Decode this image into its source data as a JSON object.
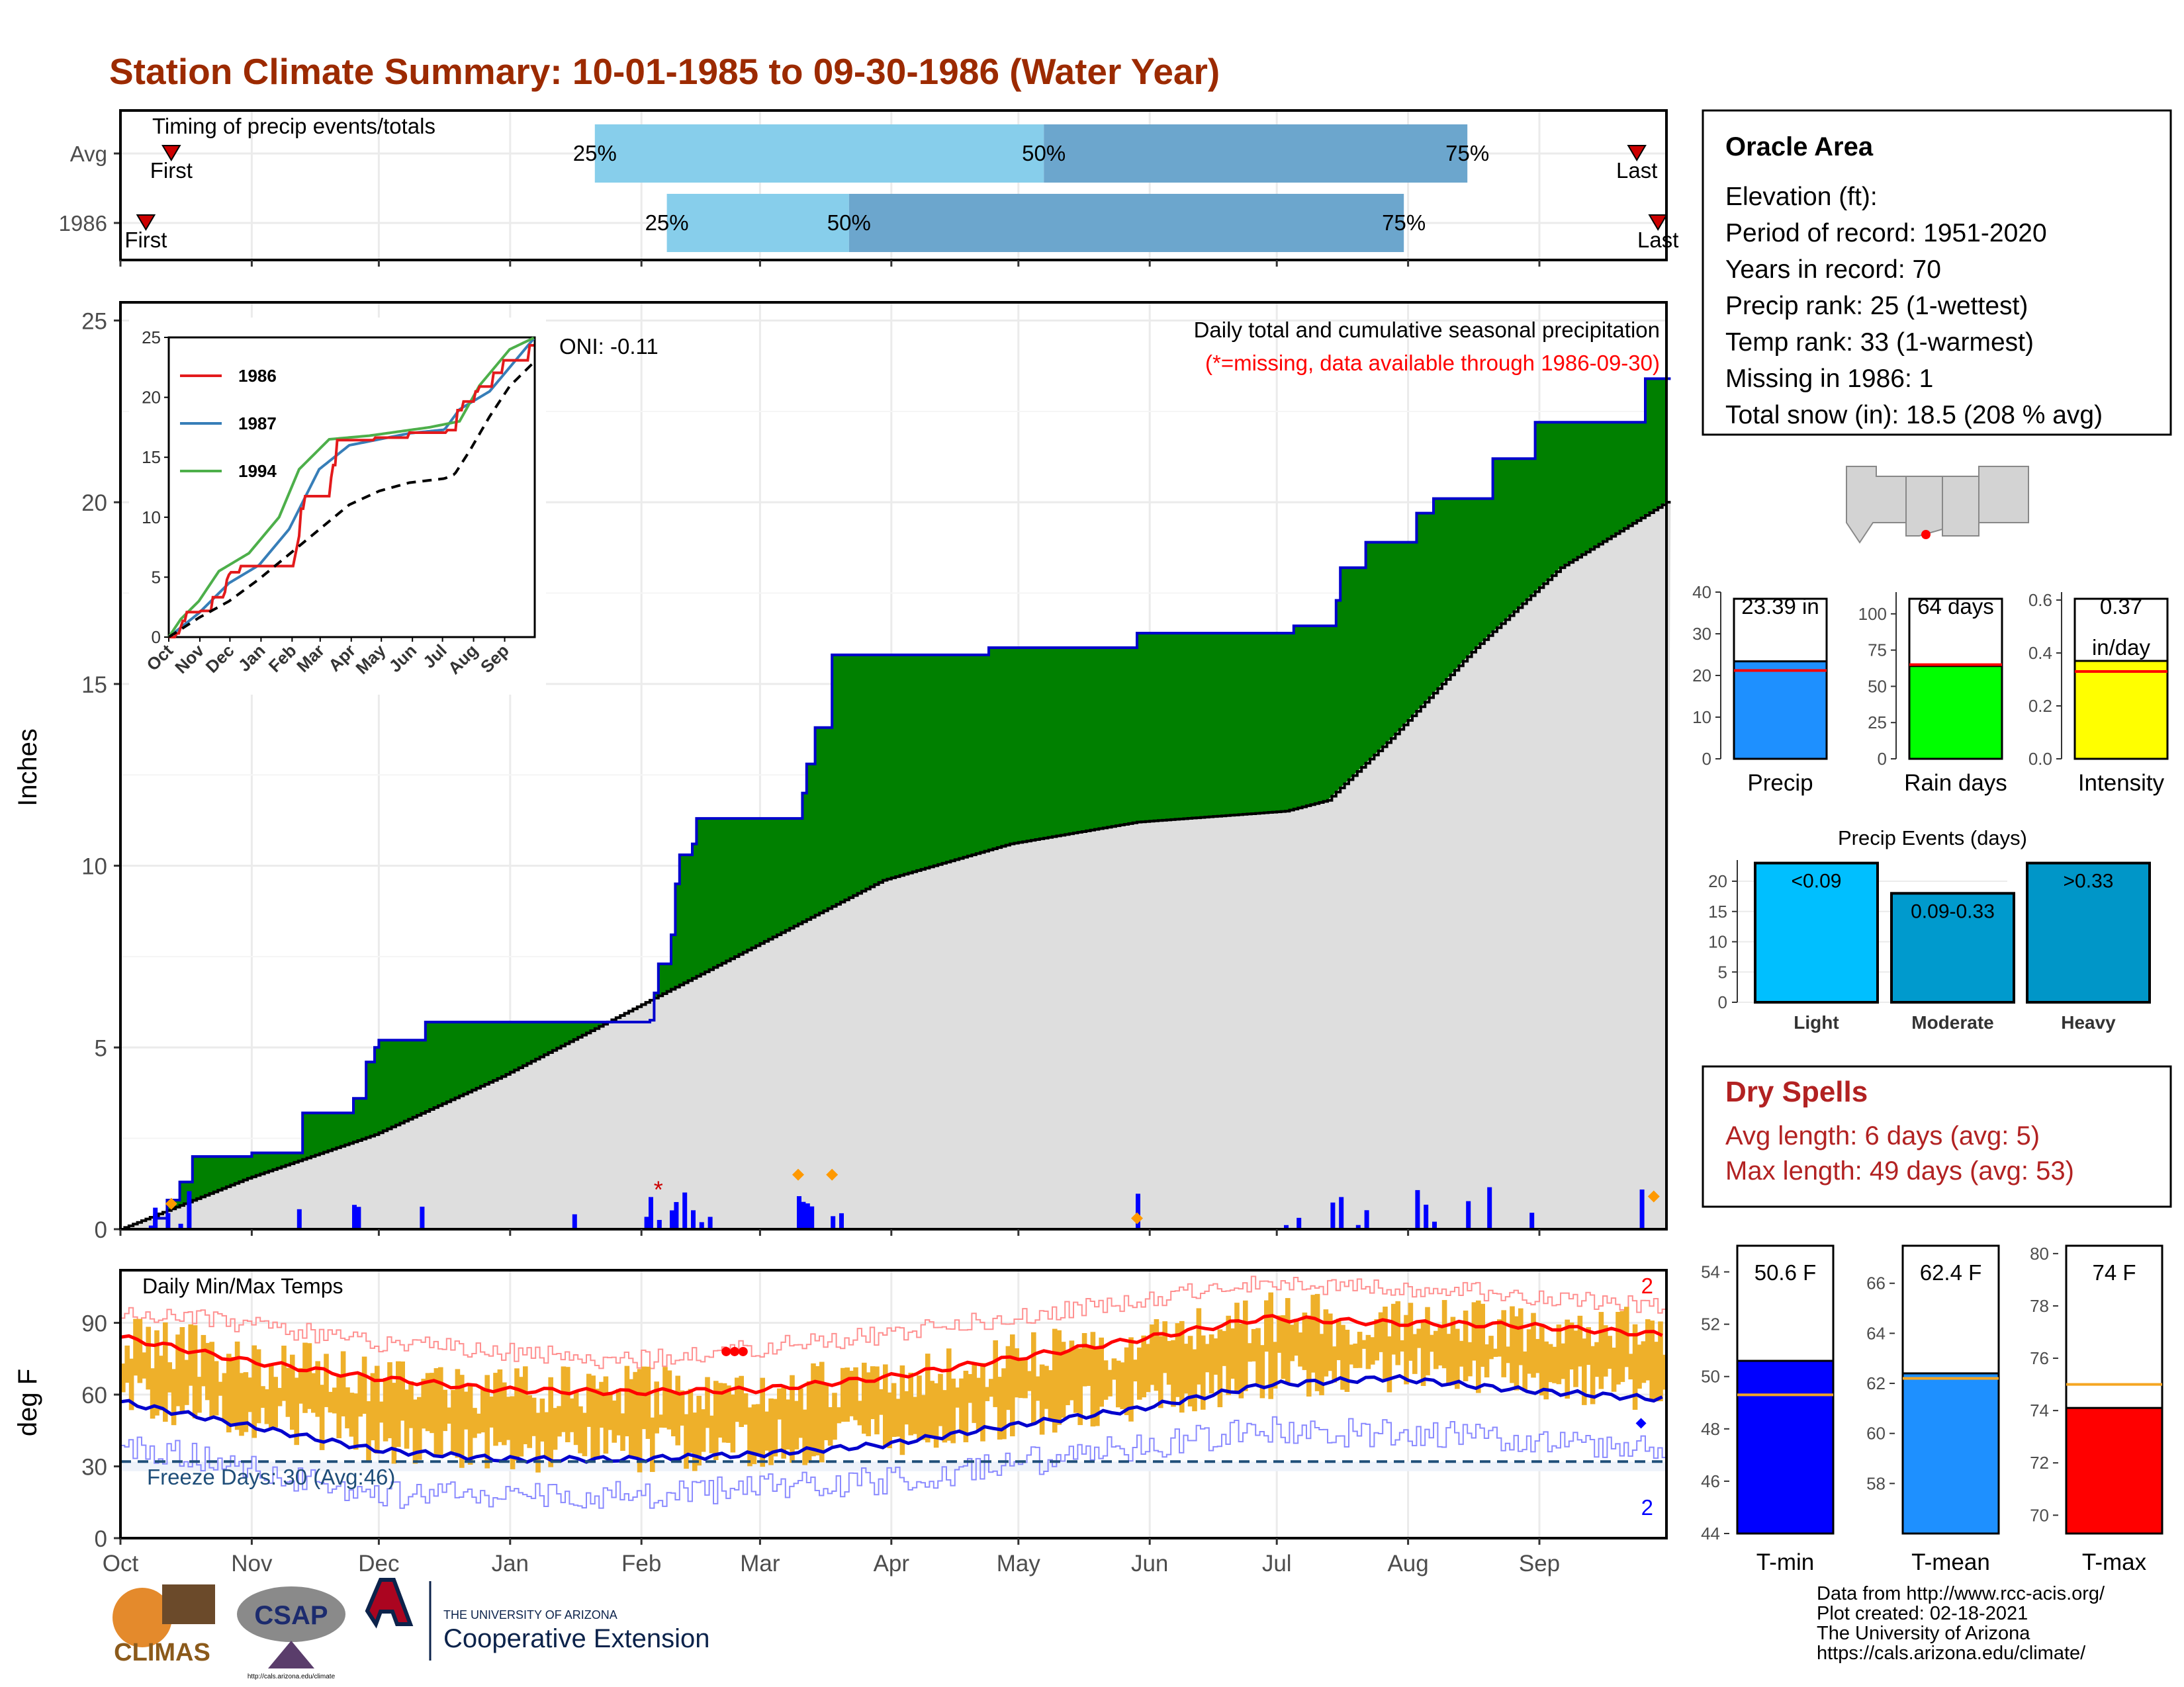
{
  "title": "Station Climate Summary: 10-01-1985 to 09-30-1986 (Water Year)",
  "timing": {
    "title": "Timing of precip events/totals",
    "rows": [
      {
        "label": "Avg",
        "first_label": "First",
        "last_label": "Last",
        "p25_label": "25%",
        "p50_label": "50%",
        "p75_label": "75%",
        "first_day": 12,
        "p25_day": 112,
        "p50_day": 218,
        "p75_day": 318,
        "last_day": 358
      },
      {
        "label": "1986",
        "first_label": "First",
        "last_label": "Last",
        "p25_label": "25%",
        "p50_label": "50%",
        "p75_label": "75%",
        "first_day": 6,
        "p25_day": 129,
        "p50_day": 172,
        "p75_day": 303,
        "last_day": 363
      }
    ]
  },
  "precip_panel": {
    "ylabel": "Inches",
    "title_line1": "Daily total and cumulative seasonal precipitation",
    "title_line2": "(*=missing, data available through 1986-09-30)",
    "oni": "ONI: -0.11"
  },
  "inset": {
    "legend": [
      "1986",
      "1987",
      "1994"
    ],
    "colors": [
      "#e31a1c",
      "#377eb8",
      "#4daf4a"
    ],
    "months": [
      "Oct",
      "Nov",
      "Dec",
      "Jan",
      "Feb",
      "Mar",
      "Apr",
      "May",
      "Jun",
      "Jul",
      "Aug",
      "Sep"
    ],
    "yticks": [
      "0",
      "5",
      "10",
      "15",
      "20",
      "25"
    ]
  },
  "temp_panel": {
    "ylabel": "deg F",
    "title": "Daily Min/Max Temps",
    "freeze_label": "Freeze Days: 30 (Avg:46)",
    "record_high_count": "2",
    "record_low_count": "2"
  },
  "x_months": [
    "Oct",
    "Nov",
    "Dec",
    "Jan",
    "Feb",
    "Mar",
    "Apr",
    "May",
    "Jun",
    "Jul",
    "Aug",
    "Sep"
  ],
  "info": {
    "station": "Oracle Area",
    "lines": [
      "Elevation (ft):",
      "Period of record: 1951-2020",
      "Years in record: 70",
      "Precip rank: 25 (1-wettest)",
      "Temp rank: 33 (1-warmest)",
      "Missing in 1986: 1",
      "Total snow (in): 18.5 (208 % avg)"
    ]
  },
  "stat_bars": [
    {
      "label": "Precip",
      "value_label": "23.39 in",
      "value": 23.39,
      "avg": 21.2,
      "ymax": 40,
      "ticks": [
        "0",
        "10",
        "20",
        "30",
        "40"
      ],
      "color": "#1e90ff"
    },
    {
      "label": "Rain days",
      "value_label": "64 days",
      "value": 64,
      "avg": 65,
      "ymax": 115,
      "ticks": [
        "0",
        "25",
        "50",
        "75",
        "100"
      ],
      "color": "#00ff00"
    },
    {
      "label": "Intensity",
      "value_label": "0.37",
      "value_label2": "in/day",
      "value": 0.37,
      "avg": 0.33,
      "ymax": 0.63,
      "ticks": [
        "0.0",
        "0.2",
        "0.4",
        "0.6"
      ],
      "color": "#ffff00"
    }
  ],
  "events": {
    "title": "Precip Events (days)",
    "categories": [
      "Light",
      "Moderate",
      "Heavy"
    ],
    "bar_labels": [
      "<0.09",
      "0.09-0.33",
      ">0.33"
    ],
    "values": [
      23,
      18,
      23
    ],
    "ticks": [
      "0",
      "5",
      "10",
      "15",
      "20"
    ],
    "colors": [
      "#00bfff",
      "#009acd",
      "#0096c8"
    ]
  },
  "dry_spells": {
    "title": "Dry Spells",
    "line1": "Avg length: 6 days (avg: 5)",
    "line2": "Max length: 49 days (avg: 53)"
  },
  "temp_bars": [
    {
      "label": "T-min",
      "value_label": "50.6 F",
      "value": 50.6,
      "avg": 49.3,
      "ymin": 44,
      "ymax": 55,
      "ticks": [
        "44",
        "46",
        "48",
        "50",
        "52",
        "54"
      ],
      "color": "#0000ff"
    },
    {
      "label": "T-mean",
      "value_label": "62.4 F",
      "value": 62.4,
      "avg": 62.2,
      "ymin": 56,
      "ymax": 67.5,
      "ticks": [
        "58",
        "60",
        "62",
        "64",
        "66"
      ],
      "color": "#1e90ff"
    },
    {
      "label": "T-max",
      "value_label": "74 F",
      "value": 74.1,
      "avg": 75,
      "ymin": 69.3,
      "ymax": 80.3,
      "ticks": [
        "70",
        "72",
        "74",
        "76",
        "78",
        "80"
      ],
      "color": "#ff0000"
    }
  ],
  "footer": {
    "lines": [
      "Data from http://www.rcc-acis.org/",
      "Plot created: 02-18-2021",
      "The University of Arizona",
      "https://cals.arizona.edu/climate/"
    ],
    "logo1": "CLIMAS",
    "logo2": "CSAP",
    "logo2_url": "http://cals.arizona.edu/climate",
    "logo3_line1": "THE UNIVERSITY OF ARIZONA",
    "logo3_line2": "Cooperative Extension"
  },
  "chart_data": [
    {
      "type": "area",
      "title": "Daily total and cumulative seasonal precipitation",
      "ylabel": "Inches",
      "ylim": [
        0,
        25.5
      ],
      "x_range_days": [
        0,
        365
      ],
      "series": [
        {
          "name": "1986",
          "points": [
            [
              0,
              0
            ],
            [
              8,
              0.3
            ],
            [
              11,
              0.8
            ],
            [
              14,
              1.3
            ],
            [
              17,
              2.0
            ],
            [
              30,
              2.0
            ],
            [
              31,
              2.1
            ],
            [
              42,
              2.1
            ],
            [
              43,
              3.2
            ],
            [
              54,
              3.2
            ],
            [
              55,
              3.6
            ],
            [
              58,
              4.6
            ],
            [
              60,
              5.0
            ],
            [
              61,
              5.2
            ],
            [
              71,
              5.2
            ],
            [
              72,
              5.7
            ],
            [
              107,
              5.7
            ],
            [
              108,
              5.7
            ],
            [
              118,
              5.7
            ],
            [
              125,
              5.75
            ],
            [
              126,
              6.5
            ],
            [
              127,
              7.3
            ],
            [
              130,
              8.1
            ],
            [
              131,
              9.5
            ],
            [
              132,
              10.3
            ],
            [
              135,
              10.6
            ],
            [
              136,
              11.3
            ],
            [
              160,
              11.3
            ],
            [
              161,
              12.0
            ],
            [
              162,
              12.8
            ],
            [
              164,
              13.8
            ],
            [
              168,
              15.8
            ],
            [
              205,
              16.0
            ],
            [
              239,
              16.0
            ],
            [
              240,
              16.4
            ],
            [
              275,
              16.4
            ],
            [
              277,
              16.6
            ],
            [
              286,
              16.6
            ],
            [
              287,
              17.3
            ],
            [
              288,
              18.2
            ],
            [
              293,
              18.2
            ],
            [
              294,
              18.9
            ],
            [
              305,
              18.9
            ],
            [
              306,
              19.7
            ],
            [
              310,
              20.1
            ],
            [
              323,
              20.1
            ],
            [
              324,
              21.2
            ],
            [
              333,
              21.2
            ],
            [
              334,
              22.2
            ],
            [
              353,
              22.2
            ],
            [
              360,
              23.4
            ],
            [
              365,
              23.4
            ]
          ]
        },
        {
          "name": "Avg",
          "points": [
            [
              0,
              0
            ],
            [
              30,
              1.4
            ],
            [
              60,
              2.6
            ],
            [
              90,
              4.2
            ],
            [
              120,
              6.0
            ],
            [
              150,
              7.8
            ],
            [
              180,
              9.6
            ],
            [
              210,
              10.6
            ],
            [
              240,
              11.2
            ],
            [
              275,
              11.5
            ],
            [
              285,
              11.8
            ],
            [
              300,
              13.5
            ],
            [
              320,
              16.0
            ],
            [
              340,
              18.2
            ],
            [
              365,
              20.0
            ]
          ]
        }
      ],
      "daily_precip_days": [
        7,
        8,
        11,
        14,
        16,
        42,
        55,
        56,
        71,
        107,
        124,
        125,
        127,
        130,
        131,
        133,
        135,
        137,
        139,
        160,
        161,
        162,
        163,
        168,
        170,
        240,
        275,
        278,
        286,
        288,
        292,
        294,
        306,
        308,
        310,
        318,
        323,
        333,
        359
      ]
    },
    {
      "type": "line",
      "title": "Daily Min/Max Temps",
      "ylabel": "deg F",
      "ylim": [
        0,
        112
      ],
      "series": [
        {
          "name": "Normal max",
          "points": [
            [
              0,
              84
            ],
            [
              30,
              74
            ],
            [
              60,
              67
            ],
            [
              90,
              62
            ],
            [
              120,
              61
            ],
            [
              150,
              62
            ],
            [
              180,
              67
            ],
            [
              210,
              75
            ],
            [
              240,
              83
            ],
            [
              270,
              92
            ],
            [
              300,
              90
            ],
            [
              330,
              89
            ],
            [
              365,
              85
            ]
          ]
        },
        {
          "name": "Normal min",
          "points": [
            [
              0,
              57
            ],
            [
              30,
              47
            ],
            [
              60,
              37
            ],
            [
              90,
              33
            ],
            [
              120,
              33
            ],
            [
              150,
              35
            ],
            [
              180,
              39
            ],
            [
              210,
              47
            ],
            [
              240,
              54
            ],
            [
              270,
              64
            ],
            [
              300,
              67
            ],
            [
              330,
              62
            ],
            [
              365,
              58
            ]
          ]
        },
        {
          "name": "Record max",
          "points": [
            [
              0,
              96
            ],
            [
              60,
              82
            ],
            [
              120,
              74
            ],
            [
              180,
              85
            ],
            [
              270,
              107
            ],
            [
              330,
              102
            ],
            [
              365,
              96
            ]
          ]
        },
        {
          "name": "Record min",
          "points": [
            [
              0,
              40
            ],
            [
              60,
              18
            ],
            [
              120,
              18
            ],
            [
              180,
              24
            ],
            [
              270,
              45
            ],
            [
              330,
              42
            ],
            [
              365,
              38
            ]
          ]
        }
      ],
      "freeze_line": 32
    }
  ]
}
